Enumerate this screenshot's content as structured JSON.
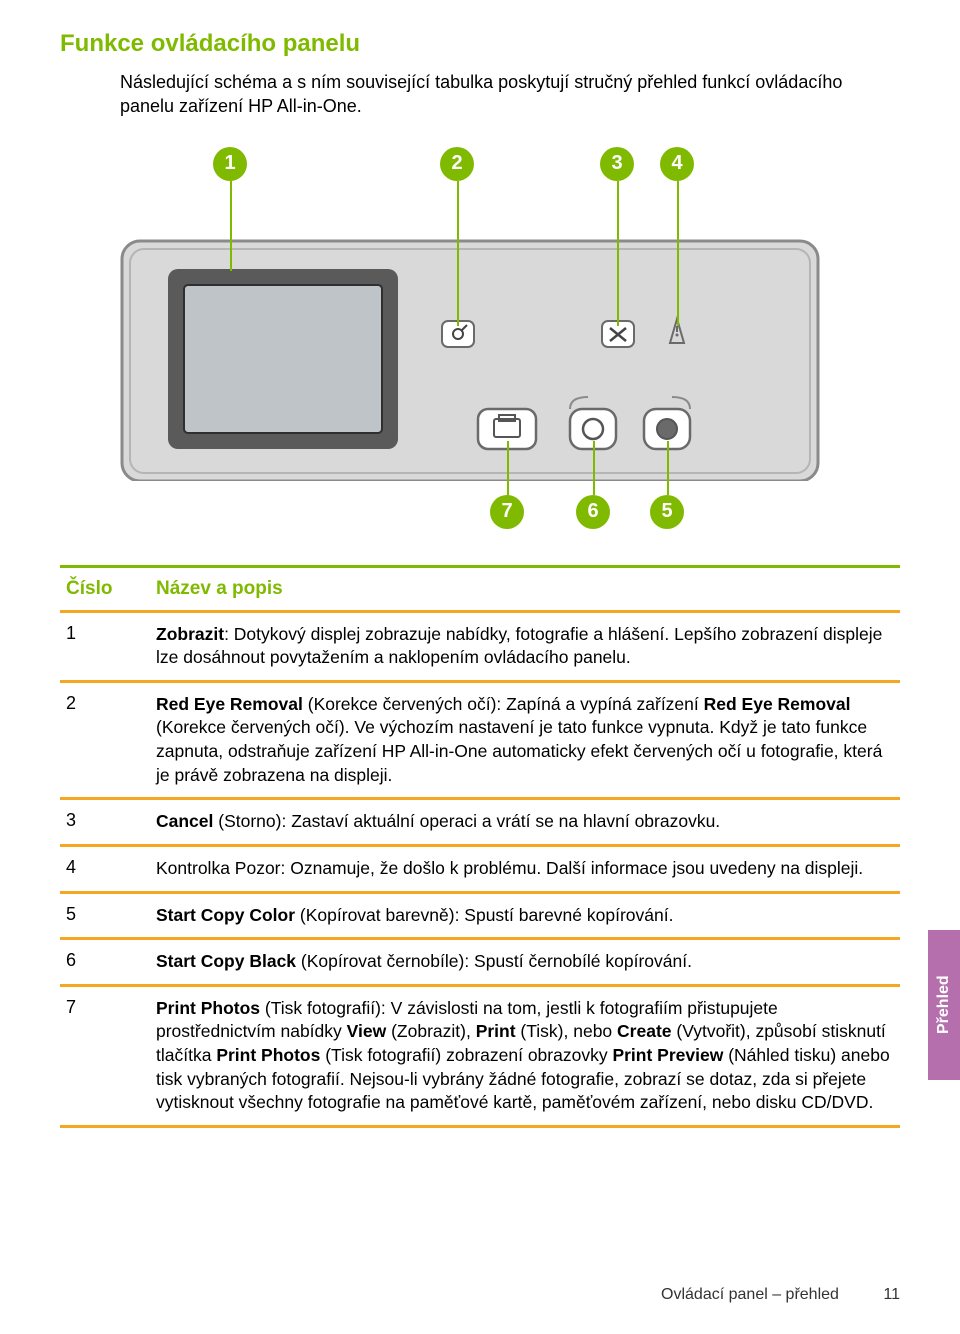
{
  "title": "Funkce ovládacího panelu",
  "intro": "Následující schéma a s ním související tabulka poskytují stručný přehled funkcí ovládacího panelu zařízení HP All-in-One.",
  "callouts": {
    "n1": "1",
    "n2": "2",
    "n3": "3",
    "n4": "4",
    "n5": "5",
    "n6": "6",
    "n7": "7"
  },
  "table": {
    "header_num": "Číslo",
    "header_desc": "Název a popis",
    "rows": [
      {
        "num": "1",
        "html": "<b>Zobrazit</b>: Dotykový displej zobrazuje nabídky, fotografie a hlášení. Lepšího zobrazení displeje lze dosáhnout povytažením a naklopením ovládacího panelu."
      },
      {
        "num": "2",
        "html": "<b>Red Eye Removal</b> (Korekce červených očí): Zapíná a vypíná zařízení <b>Red Eye Removal</b> (Korekce červených očí). Ve výchozím nastavení je tato funkce vypnuta. Když je tato funkce zapnuta, odstraňuje zařízení HP All-in-One automaticky efekt červených očí u fotografie, která je právě zobrazena na displeji."
      },
      {
        "num": "3",
        "html": "<b>Cancel</b> (Storno): Zastaví aktuální operaci a vrátí se na hlavní obrazovku."
      },
      {
        "num": "4",
        "html": "Kontrolka Pozor: Oznamuje, že došlo k problému. Další informace jsou uvedeny na displeji."
      },
      {
        "num": "5",
        "html": "<b>Start Copy Color</b> (Kopírovat barevně): Spustí barevné kopírování."
      },
      {
        "num": "6",
        "html": "<b>Start Copy Black</b> (Kopírovat černobíle): Spustí černobílé kopírování."
      },
      {
        "num": "7",
        "html": "<b>Print Photos</b> (Tisk fotografií): V závislosti na tom, jestli k fotografiím přistupujete prostřednictvím nabídky <b>View</b> (Zobrazit), <b>Print</b> (Tisk), nebo <b>Create</b> (Vytvořit), způsobí stisknutí tlačítka <b>Print Photos</b> (Tisk fotografií) zobrazení obrazovky <b>Print Preview</b> (Náhled tisku) anebo tisk vybraných fotografií. Nejsou-li vybrány žádné fotografie, zobrazí se dotaz, zda si přejete vytisknout všechny fotografie na paměťové kartě, paměťovém zařízení, nebo disku CD/DVD."
      }
    ]
  },
  "side_tab": "Přehled",
  "footer_chapter": "Ovládací panel – přehled",
  "footer_page": "11",
  "colors": {
    "accent_green": "#7fba00",
    "divider_orange": "#f5a623",
    "tab_purple": "#b56fad",
    "panel_gray": "#d9d9d9",
    "panel_outline": "#8a8a8a",
    "screen_fill": "#bfc4c8"
  }
}
